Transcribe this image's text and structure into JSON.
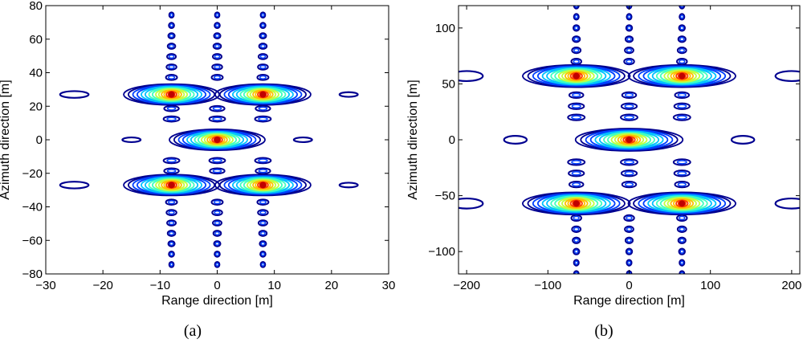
{
  "chart_data": [
    {
      "type": "contour",
      "caption": "(a)",
      "caption_letter": "a",
      "xlabel": "Range direction [m]",
      "ylabel": "Azimuth direction [m]",
      "xlim": [
        -30,
        30
      ],
      "ylim": [
        -80,
        80
      ],
      "xticks": [
        -30,
        -20,
        -10,
        0,
        10,
        20,
        30
      ],
      "yticks": [
        -80,
        -60,
        -40,
        -20,
        0,
        20,
        40,
        60,
        80
      ],
      "colormap": [
        "#000090",
        "#0040ff",
        "#00c0ff",
        "#40ffc0",
        "#c0ff40",
        "#ffc000",
        "#ff4000",
        "#c00000"
      ],
      "targets": [
        {
          "x": -8,
          "y": 27,
          "peak": 1.0
        },
        {
          "x": 8,
          "y": 27,
          "peak": 1.0
        },
        {
          "x": 0,
          "y": 0,
          "peak": 1.0
        },
        {
          "x": -8,
          "y": -27,
          "peak": 1.0
        },
        {
          "x": 8,
          "y": -27,
          "peak": 1.0
        }
      ],
      "target_extent": {
        "range_halfwidth": 3.8,
        "azimuth_halfwidth": 5.0
      },
      "azimuth_sidelobes": {
        "x_positions": [
          -8,
          0,
          8
        ],
        "spacing": 6.2,
        "count": 8,
        "halfwidth": 1.6,
        "height": 1.6
      },
      "range_sidelobes": [
        {
          "x": -25,
          "y": 27,
          "rx": 2.5,
          "ry": 2.0
        },
        {
          "x": 23,
          "y": 27,
          "rx": 1.6,
          "ry": 1.4
        },
        {
          "x": -15,
          "y": 0,
          "rx": 1.6,
          "ry": 1.4
        },
        {
          "x": 15,
          "y": 0,
          "rx": 1.6,
          "ry": 1.4
        },
        {
          "x": -25,
          "y": -27,
          "rx": 2.5,
          "ry": 2.0
        },
        {
          "x": 23,
          "y": -27,
          "rx": 1.6,
          "ry": 1.4
        }
      ]
    },
    {
      "type": "contour",
      "caption": "(b)",
      "caption_letter": "b",
      "xlabel": "Range direction [m]",
      "ylabel": "Azimuth direction [m]",
      "xlim": [
        -210,
        210
      ],
      "ylim": [
        -120,
        120
      ],
      "xticks": [
        -200,
        -100,
        0,
        100,
        200
      ],
      "yticks": [
        -100,
        -50,
        0,
        50,
        100
      ],
      "colormap": [
        "#000090",
        "#0040ff",
        "#00c0ff",
        "#40ffc0",
        "#c0ff40",
        "#ffc000",
        "#ff4000",
        "#c00000"
      ],
      "targets": [
        {
          "x": -65,
          "y": 57,
          "peak": 1.0
        },
        {
          "x": 65,
          "y": 57,
          "peak": 1.0
        },
        {
          "x": 0,
          "y": 0,
          "peak": 1.0
        },
        {
          "x": -65,
          "y": -57,
          "peak": 1.0
        },
        {
          "x": 65,
          "y": -57,
          "peak": 1.0
        }
      ],
      "target_extent": {
        "range_halfwidth": 30,
        "azimuth_halfwidth": 8
      },
      "azimuth_sidelobes": {
        "x_positions": [
          -65,
          0,
          65
        ],
        "spacing": 10,
        "count": 7,
        "halfwidth": 12,
        "height": 2.6
      },
      "range_sidelobes": [
        {
          "x": -200,
          "y": 57,
          "rx": 20,
          "ry": 4.5
        },
        {
          "x": 200,
          "y": 57,
          "rx": 20,
          "ry": 4.5
        },
        {
          "x": -140,
          "y": 0,
          "rx": 14,
          "ry": 3.5
        },
        {
          "x": 140,
          "y": 0,
          "rx": 14,
          "ry": 3.5
        },
        {
          "x": -200,
          "y": -57,
          "rx": 20,
          "ry": 4.5
        },
        {
          "x": 200,
          "y": -57,
          "rx": 20,
          "ry": 4.5
        }
      ]
    }
  ]
}
